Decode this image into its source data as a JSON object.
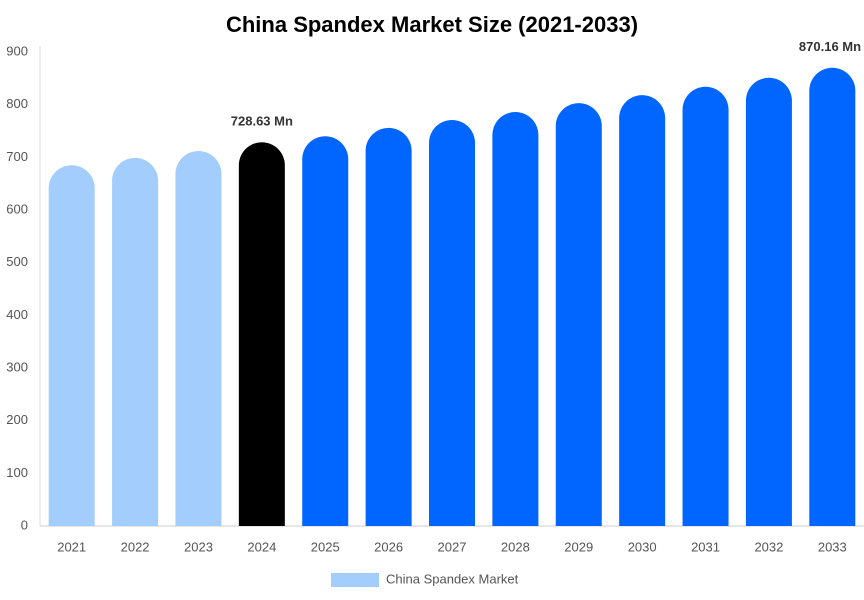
{
  "chart_data": {
    "type": "bar",
    "title": "China Spandex Market Size (2021-2033)",
    "categories": [
      "2021",
      "2022",
      "2023",
      "2024",
      "2025",
      "2026",
      "2027",
      "2028",
      "2029",
      "2030",
      "2031",
      "2032",
      "2033"
    ],
    "series": [
      {
        "name": "China Spandex Market",
        "color": "#a3cdfc",
        "values": [
          685,
          699,
          712,
          728.63,
          740,
          756,
          771,
          786,
          803,
          818,
          834,
          851,
          870.16
        ],
        "value_labels": [
          null,
          null,
          null,
          "728.63 Mn",
          null,
          null,
          null,
          null,
          null,
          null,
          null,
          null,
          "870.16 Mn"
        ],
        "colors": [
          "#a3cdfc",
          "#a3cdfc",
          "#a3cdfc",
          "#000000",
          "#0066ff",
          "#0066ff",
          "#0066ff",
          "#0066ff",
          "#0066ff",
          "#0066ff",
          "#0066ff",
          "#0066ff",
          "#0066ff"
        ]
      }
    ],
    "ylim": [
      0,
      900
    ],
    "yticks": [
      0,
      100,
      200,
      300,
      400,
      500,
      600,
      700,
      800,
      900
    ],
    "grid": false,
    "legend": "bottom"
  }
}
